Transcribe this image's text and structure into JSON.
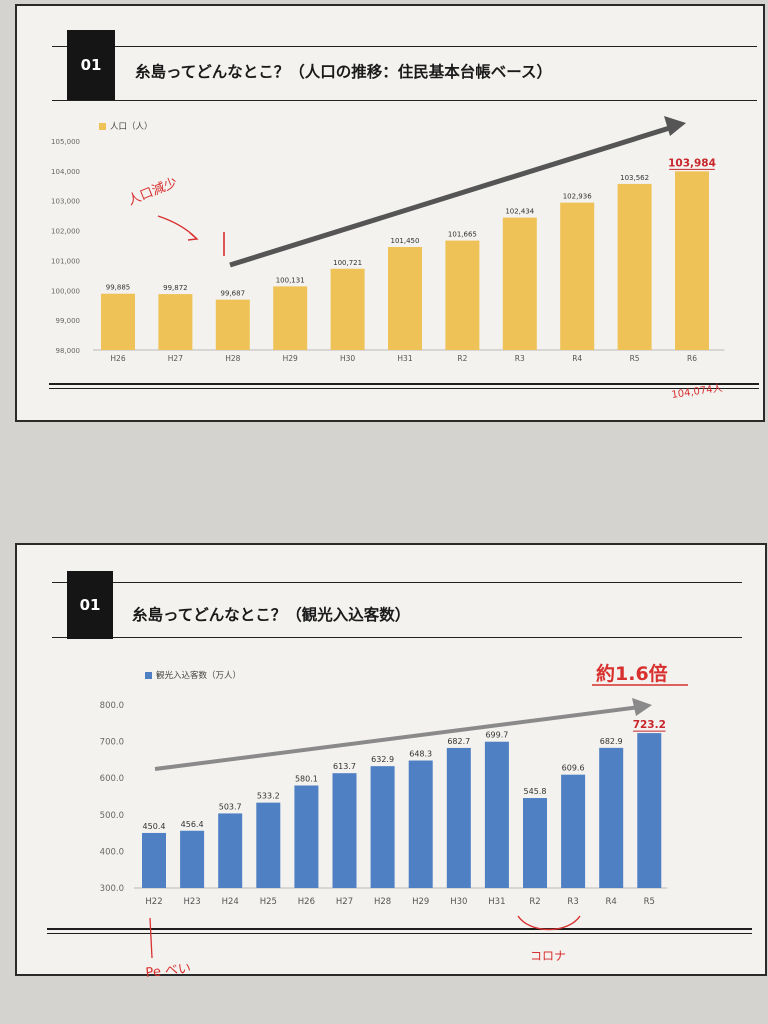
{
  "slide1": {
    "number": "01",
    "title": "糸島ってどんなとこ？（人口の推移：住民基本台帳ベース）",
    "legend": "人口（人）",
    "colors": {
      "bar": "#efc257",
      "highlight": "#c9262c",
      "arrow": "#555555",
      "pen": "#d8302f"
    },
    "annotations": {
      "handwritten_decline": "人口減少",
      "handwritten_bottom": "104,074人"
    }
  },
  "slide2": {
    "number": "01",
    "title": "糸島ってどんなとこ？（観光入込客数）",
    "legend": "観光入込客数（万人）",
    "callout": "約1.6倍",
    "colors": {
      "bar": "#4f80c3",
      "highlight": "#c9262c",
      "arrow": "#8a8a8a",
      "pen": "#d8302f"
    },
    "annotations": {
      "handwritten_left": "Pe べい",
      "handwritten_covid": "コロナ"
    }
  },
  "chart_data": [
    {
      "type": "bar",
      "title": "",
      "legend": [
        "人口（人）"
      ],
      "categories": [
        "H26",
        "H27",
        "H28",
        "H29",
        "H30",
        "H31",
        "R2",
        "R3",
        "R4",
        "R5",
        "R6"
      ],
      "series": [
        {
          "name": "人口（人）",
          "values": [
            99885,
            99872,
            99687,
            100131,
            100721,
            101450,
            101665,
            102434,
            102936,
            103562,
            103984
          ]
        }
      ],
      "value_labels": [
        "99,885",
        "99,872",
        "99,687",
        "100,131",
        "100,721",
        "101,450",
        "101,665",
        "102,434",
        "102,936",
        "103,562",
        "103,984"
      ],
      "highlight_index": 10,
      "yticks": [
        "98,000",
        "99,000",
        "100,000",
        "101,000",
        "102,000",
        "103,000",
        "104,000",
        "105,000"
      ],
      "ylim": [
        98000,
        105000
      ],
      "grid": false,
      "legend_position": "top-left"
    },
    {
      "type": "bar",
      "title": "",
      "legend": [
        "観光入込客数（万人）"
      ],
      "categories": [
        "H22",
        "H23",
        "H24",
        "H25",
        "H26",
        "H27",
        "H28",
        "H29",
        "H30",
        "H31",
        "R2",
        "R3",
        "R4",
        "R5"
      ],
      "series": [
        {
          "name": "観光入込客数（万人）",
          "values": [
            450.4,
            456.4,
            503.7,
            533.2,
            580.1,
            613.7,
            632.9,
            648.3,
            682.7,
            699.7,
            545.8,
            609.6,
            682.9,
            723.2
          ]
        }
      ],
      "value_labels": [
        "450.4",
        "456.4",
        "503.7",
        "533.2",
        "580.1",
        "613.7",
        "632.9",
        "648.3",
        "682.7",
        "699.7",
        "545.8",
        "609.6",
        "682.9",
        "723.2"
      ],
      "highlight_index": 13,
      "yticks": [
        "300.0",
        "400.0",
        "500.0",
        "600.0",
        "700.0",
        "800.0"
      ],
      "ylim": [
        300,
        800
      ],
      "grid": false,
      "legend_position": "top-left"
    }
  ]
}
